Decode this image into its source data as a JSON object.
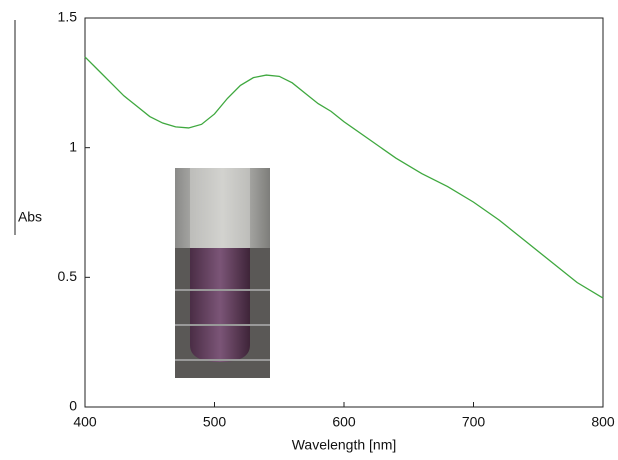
{
  "chart_data": {
    "type": "line",
    "xlabel": "Wavelength [nm]",
    "ylabel": "Abs",
    "x": [
      400,
      410,
      420,
      430,
      440,
      450,
      460,
      470,
      480,
      490,
      500,
      510,
      520,
      530,
      540,
      550,
      560,
      570,
      580,
      590,
      600,
      620,
      640,
      660,
      680,
      700,
      720,
      740,
      760,
      780,
      800
    ],
    "values": [
      1.35,
      1.3,
      1.25,
      1.2,
      1.16,
      1.12,
      1.095,
      1.08,
      1.076,
      1.09,
      1.13,
      1.19,
      1.24,
      1.27,
      1.28,
      1.275,
      1.25,
      1.21,
      1.17,
      1.14,
      1.1,
      1.03,
      0.96,
      0.9,
      0.85,
      0.79,
      0.72,
      0.64,
      0.56,
      0.48,
      0.42
    ],
    "color": "#3fa83f",
    "xlim": [
      400,
      800
    ],
    "xticks": [
      400,
      500,
      600,
      700,
      800
    ],
    "ylim": [
      0,
      1.5
    ],
    "yticks": [
      0,
      0.5,
      1,
      1.5
    ]
  }
}
